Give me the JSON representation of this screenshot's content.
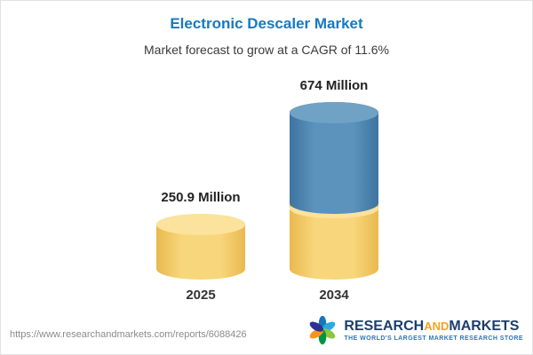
{
  "header": {
    "title": "Electronic Descaler Market",
    "subtitle": "Market forecast to grow at a CAGR of 11.6%"
  },
  "chart_data": {
    "type": "bar",
    "title": "Electronic Descaler Market",
    "subtitle": "Market forecast to grow at a CAGR of 11.6%",
    "categories": [
      "2025",
      "2034"
    ],
    "values": [
      250.9,
      674
    ],
    "value_labels": [
      "250.9 Million",
      "674 Million"
    ],
    "unit": "Million",
    "cagr": "11.6%",
    "ylim": [
      0,
      674
    ],
    "grid": false,
    "legend": false,
    "bar_style": "3d-cylinder",
    "colors": {
      "bar_2025": "#f6cf6e",
      "bar_2034_base_segment": "#f6cf6e",
      "bar_2034_top_segment": "#4e87b1",
      "title_accent": "#1879be"
    }
  },
  "footer": {
    "url": "https://www.researchandmarkets.com/reports/6088426",
    "logo": {
      "name_part1": "RESEARCH",
      "name_part2": "AND",
      "name_part3": "MARKETS",
      "tagline": "THE WORLD'S LARGEST MARKET RESEARCH STORE"
    }
  }
}
